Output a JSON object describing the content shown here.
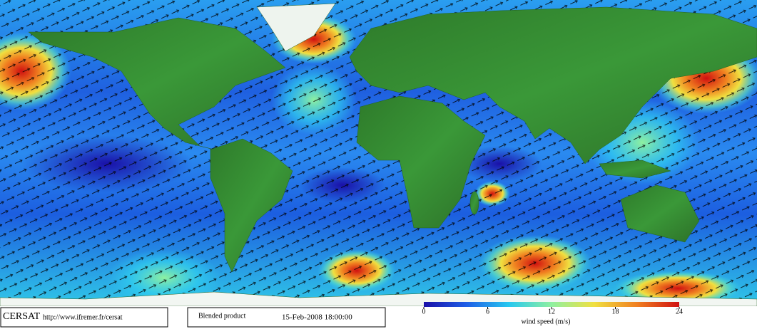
{
  "map": {
    "logo": "CERSAT",
    "url": "http://www.ifremer.fr/cersat",
    "product": "Blended product",
    "datetime": "15-Feb-2008 18:00:00",
    "colorbar": {
      "label": "wind speed (m/s)",
      "lim": [
        0,
        24
      ],
      "ticks": [
        0,
        6,
        12,
        18,
        24
      ],
      "colors": [
        "#1a10a8",
        "#1e5ee6",
        "#27c8f0",
        "#8ef0a0",
        "#f0e040",
        "#f08020",
        "#d01010"
      ]
    }
  }
}
